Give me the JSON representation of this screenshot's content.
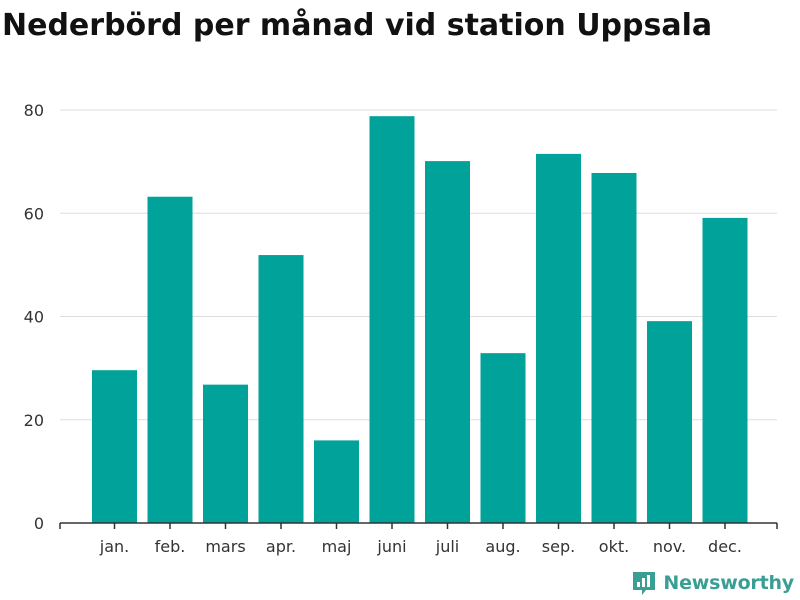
{
  "chart_data": {
    "type": "bar",
    "title": "Nederbörd per månad vid station Uppsala",
    "xlabel": "",
    "ylabel": "",
    "categories": [
      "jan.",
      "feb.",
      "mars",
      "apr.",
      "maj",
      "juni",
      "juli",
      "aug.",
      "sep.",
      "okt.",
      "nov.",
      "dec."
    ],
    "values": [
      29.6,
      63.2,
      26.8,
      51.9,
      16.0,
      78.8,
      70.1,
      32.9,
      71.5,
      67.8,
      39.1,
      59.1
    ],
    "ylim": [
      0,
      80
    ],
    "yticks": [
      0,
      20,
      40,
      60,
      80
    ],
    "grid": true,
    "bar_color": "#00a29a"
  },
  "brand": {
    "name": "Newsworthy",
    "icon": "newsworthy-logo-icon",
    "color": "#3a9e94"
  }
}
